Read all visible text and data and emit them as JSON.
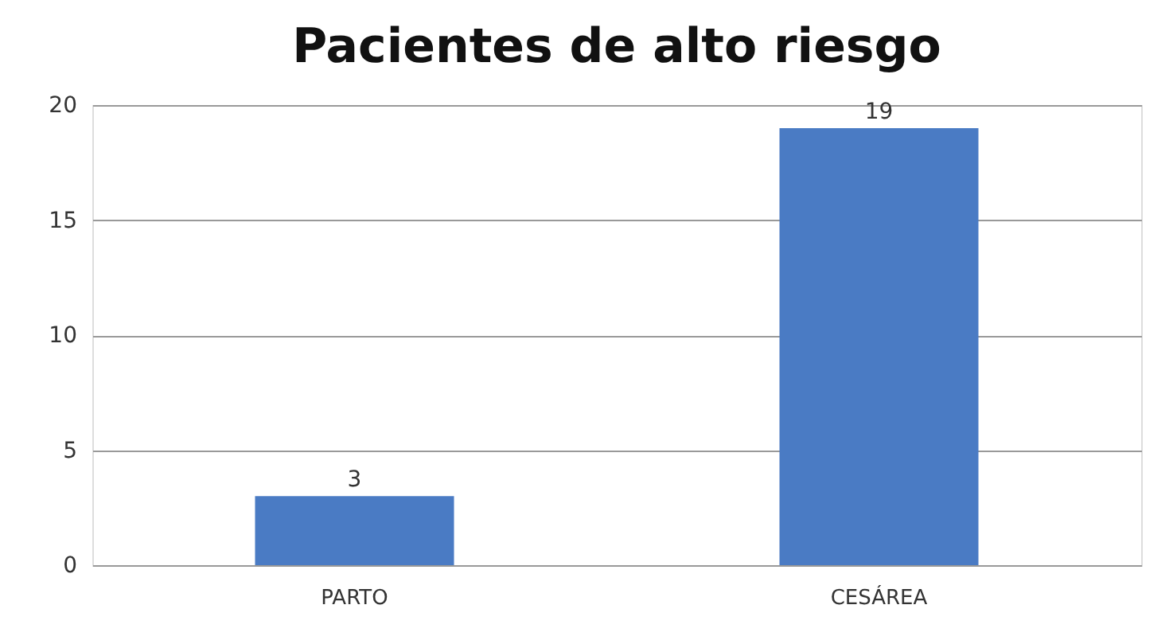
{
  "chart_data": {
    "type": "bar",
    "title": "Pacientes de alto riesgo",
    "categories": [
      "PARTO",
      "CESÁREA"
    ],
    "values": [
      3,
      19
    ],
    "color": "#4a7bc4",
    "ylim": [
      0,
      20
    ],
    "yticks": [
      0,
      5,
      10,
      15,
      20
    ],
    "grid": "y",
    "data_labels": true
  }
}
